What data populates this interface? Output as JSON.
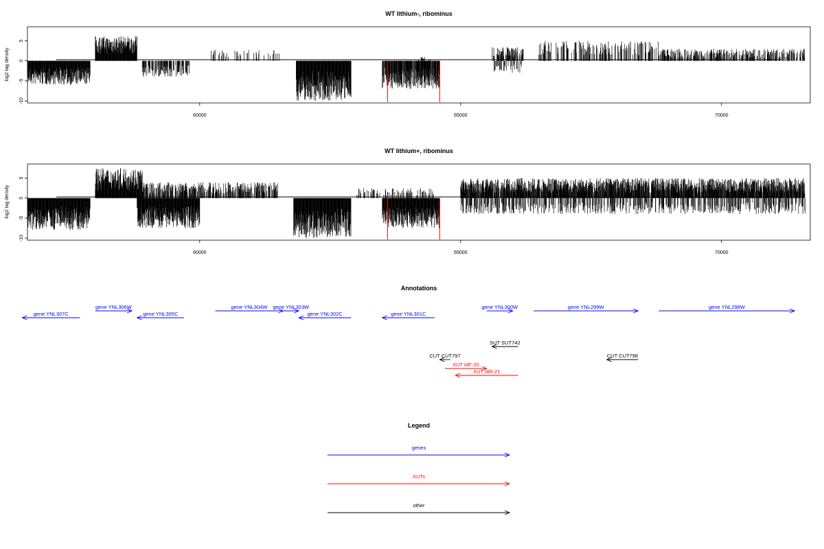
{
  "chart_data": [
    {
      "type": "bar",
      "title": "WT lithium-, ribominus",
      "ylabel": "log2 tag density",
      "xlim": [
        56700,
        71700
      ],
      "ylim": [
        -10.5,
        8.5
      ],
      "x_ticks": [
        60000,
        65000,
        70000
      ],
      "y_ticks": [
        -10,
        -5,
        0,
        5
      ],
      "grid": false,
      "legend": "none",
      "highlight_x": [
        63600,
        64600
      ],
      "colors": {
        "bars": "#000000",
        "highlight": "#ff0000"
      },
      "density_profile": [
        {
          "range": [
            56700,
            57900
          ],
          "sign": -1,
          "max": 6,
          "density": 1.0
        },
        {
          "range": [
            58000,
            58800
          ],
          "sign": 1,
          "max": 6.2,
          "density": 1.0
        },
        {
          "range": [
            58900,
            59800
          ],
          "sign": -1,
          "max": 4,
          "density": 0.6
        },
        {
          "range": [
            60200,
            61600
          ],
          "sign": 1,
          "max": 2.8,
          "density": 0.15
        },
        {
          "range": [
            61850,
            62900
          ],
          "sign": -1,
          "max": 10,
          "density": 1.0
        },
        {
          "range": [
            63500,
            64600
          ],
          "sign": -1,
          "max": 7,
          "density": 0.9
        },
        {
          "range": [
            64200,
            64500
          ],
          "sign": 1,
          "max": 1,
          "density": 0.2
        },
        {
          "range": [
            65600,
            66200
          ],
          "sign": 1,
          "max": 3.5,
          "density": 0.6
        },
        {
          "range": [
            65600,
            66200
          ],
          "sign": -1,
          "max": 3,
          "density": 0.3
        },
        {
          "range": [
            66500,
            68800
          ],
          "sign": 1,
          "max": 5,
          "density": 0.4
        },
        {
          "range": [
            68800,
            71600
          ],
          "sign": 1,
          "max": 3,
          "density": 0.5
        }
      ]
    },
    {
      "type": "bar",
      "title": "WT lithium+, ribominus",
      "ylabel": "log2 tag density",
      "xlim": [
        56700,
        71700
      ],
      "ylim": [
        -10.5,
        8.5
      ],
      "x_ticks": [
        60000,
        65000,
        70000
      ],
      "y_ticks": [
        -10,
        -5,
        0,
        5
      ],
      "grid": false,
      "legend": "none",
      "highlight_x": [
        63600,
        64600
      ],
      "colors": {
        "bars": "#000000",
        "highlight": "#ff0000"
      },
      "density_profile": [
        {
          "range": [
            56700,
            57900
          ],
          "sign": -1,
          "max": 8,
          "density": 1.0
        },
        {
          "range": [
            58000,
            58900
          ],
          "sign": 1,
          "max": 7.5,
          "density": 1.0
        },
        {
          "range": [
            58800,
            60000
          ],
          "sign": -1,
          "max": 7.5,
          "density": 1.0
        },
        {
          "range": [
            58900,
            61500
          ],
          "sign": 1,
          "max": 4,
          "density": 0.6
        },
        {
          "range": [
            61800,
            62900
          ],
          "sign": -1,
          "max": 10,
          "density": 1.0
        },
        {
          "range": [
            63500,
            64600
          ],
          "sign": -1,
          "max": 7.5,
          "density": 1.0
        },
        {
          "range": [
            63000,
            64500
          ],
          "sign": 1,
          "max": 2.5,
          "density": 0.3
        },
        {
          "range": [
            65000,
            71600
          ],
          "sign": 1,
          "max": 5,
          "density": 0.9
        },
        {
          "range": [
            65000,
            71600
          ],
          "sign": -1,
          "max": 4,
          "density": 0.4
        }
      ]
    }
  ],
  "annotations": {
    "title": "Annotations",
    "xlim": [
      56700,
      71700
    ],
    "features": [
      {
        "label": "gene YNL307C",
        "start": 57700,
        "end": 56600,
        "row": 0,
        "color": "#0000ff"
      },
      {
        "label": "gene YNL306W",
        "start": 58000,
        "end": 58700,
        "row": 1,
        "color": "#0000ff"
      },
      {
        "label": "gene YNL305C",
        "start": 59700,
        "end": 58800,
        "row": 0,
        "color": "#0000ff"
      },
      {
        "label": "gene YNL304W",
        "start": 60300,
        "end": 61600,
        "row": 1,
        "color": "#0000ff"
      },
      {
        "label": "gene YNL303W",
        "start": 61600,
        "end": 61900,
        "row": 1,
        "color": "#0000ff"
      },
      {
        "label": "gene YNL302C",
        "start": 62900,
        "end": 61900,
        "row": 0,
        "color": "#0000ff"
      },
      {
        "label": "gene YNL301C",
        "start": 64500,
        "end": 63500,
        "row": 0,
        "color": "#0000ff"
      },
      {
        "label": "gene YNL300W",
        "start": 65500,
        "end": 66000,
        "row": 1,
        "color": "#0000ff"
      },
      {
        "label": "gene YNL299W",
        "start": 66400,
        "end": 68400,
        "row": 1,
        "color": "#0000ff"
      },
      {
        "label": "gene YNL298W",
        "start": 68800,
        "end": 71400,
        "row": 1,
        "color": "#0000ff"
      },
      {
        "label": "SUT SUT742",
        "start": 66100,
        "end": 65600,
        "row": 2,
        "color": "#000000"
      },
      {
        "label": "CUT CUT797",
        "start": 64800,
        "end": 64600,
        "row": 3,
        "color": "#000000"
      },
      {
        "label": "CUT CUT798",
        "start": 68400,
        "end": 67800,
        "row": 3,
        "color": "#000000"
      },
      {
        "label": "XUT t4F-20",
        "start": 64700,
        "end": 65500,
        "row": 4,
        "color": "#ff0000"
      },
      {
        "label": "XUT t4R-21",
        "start": 66100,
        "end": 64900,
        "row": 5,
        "color": "#ff0000"
      }
    ]
  },
  "legend": {
    "title": "Legend",
    "items": [
      {
        "label": "genes",
        "color": "#0000ff"
      },
      {
        "label": "XUTs",
        "color": "#ff0000"
      },
      {
        "label": "other",
        "color": "#000000"
      }
    ]
  }
}
